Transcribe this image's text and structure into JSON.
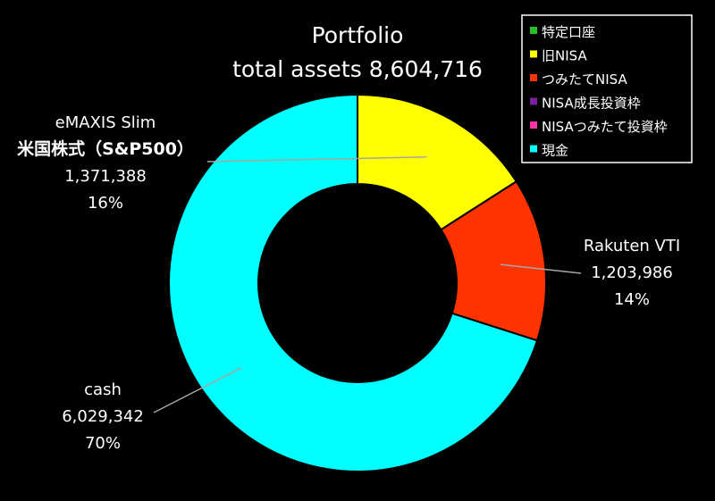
{
  "colors": {
    "background": "#000000",
    "text": "#ffffff",
    "slice_border": "#000000",
    "leader": "#a6a6a6",
    "legend_border": "#ffffff"
  },
  "chart_data": {
    "type": "pie",
    "style": "donut",
    "title_lines": [
      "Portfolio",
      "total assets 8,604,716"
    ],
    "start": "top",
    "direction": "clockwise",
    "legend_placement": "top-right",
    "legend": [
      {
        "name": "特定口座",
        "color": "#22c022"
      },
      {
        "name": "旧NISA",
        "color": "#ffff00"
      },
      {
        "name": "つみたてNISA",
        "color": "#ff3300"
      },
      {
        "name": "NISA成長投資枠",
        "color": "#7a1fa2"
      },
      {
        "name": "NISAつみたて投資枠",
        "color": "#ff33aa"
      },
      {
        "name": "現金",
        "color": "#00ffff"
      }
    ],
    "slices": [
      {
        "category": "旧NISA",
        "value": 1371388,
        "percent": 16,
        "color": "#ffff00",
        "label_lines": [
          "eMAXIS Slim",
          "米国株式（S&P500）",
          "1,371,388",
          "16%"
        ]
      },
      {
        "category": "つみたてNISA",
        "value": 1203986,
        "percent": 14,
        "color": "#ff3300",
        "label_lines": [
          "Rakuten VTI",
          "1,203,986",
          "14%"
        ]
      },
      {
        "category": "現金",
        "value": 6029342,
        "percent": 70,
        "color": "#00ffff",
        "label_lines": [
          "cash",
          "6,029,342",
          "70%"
        ]
      }
    ]
  }
}
